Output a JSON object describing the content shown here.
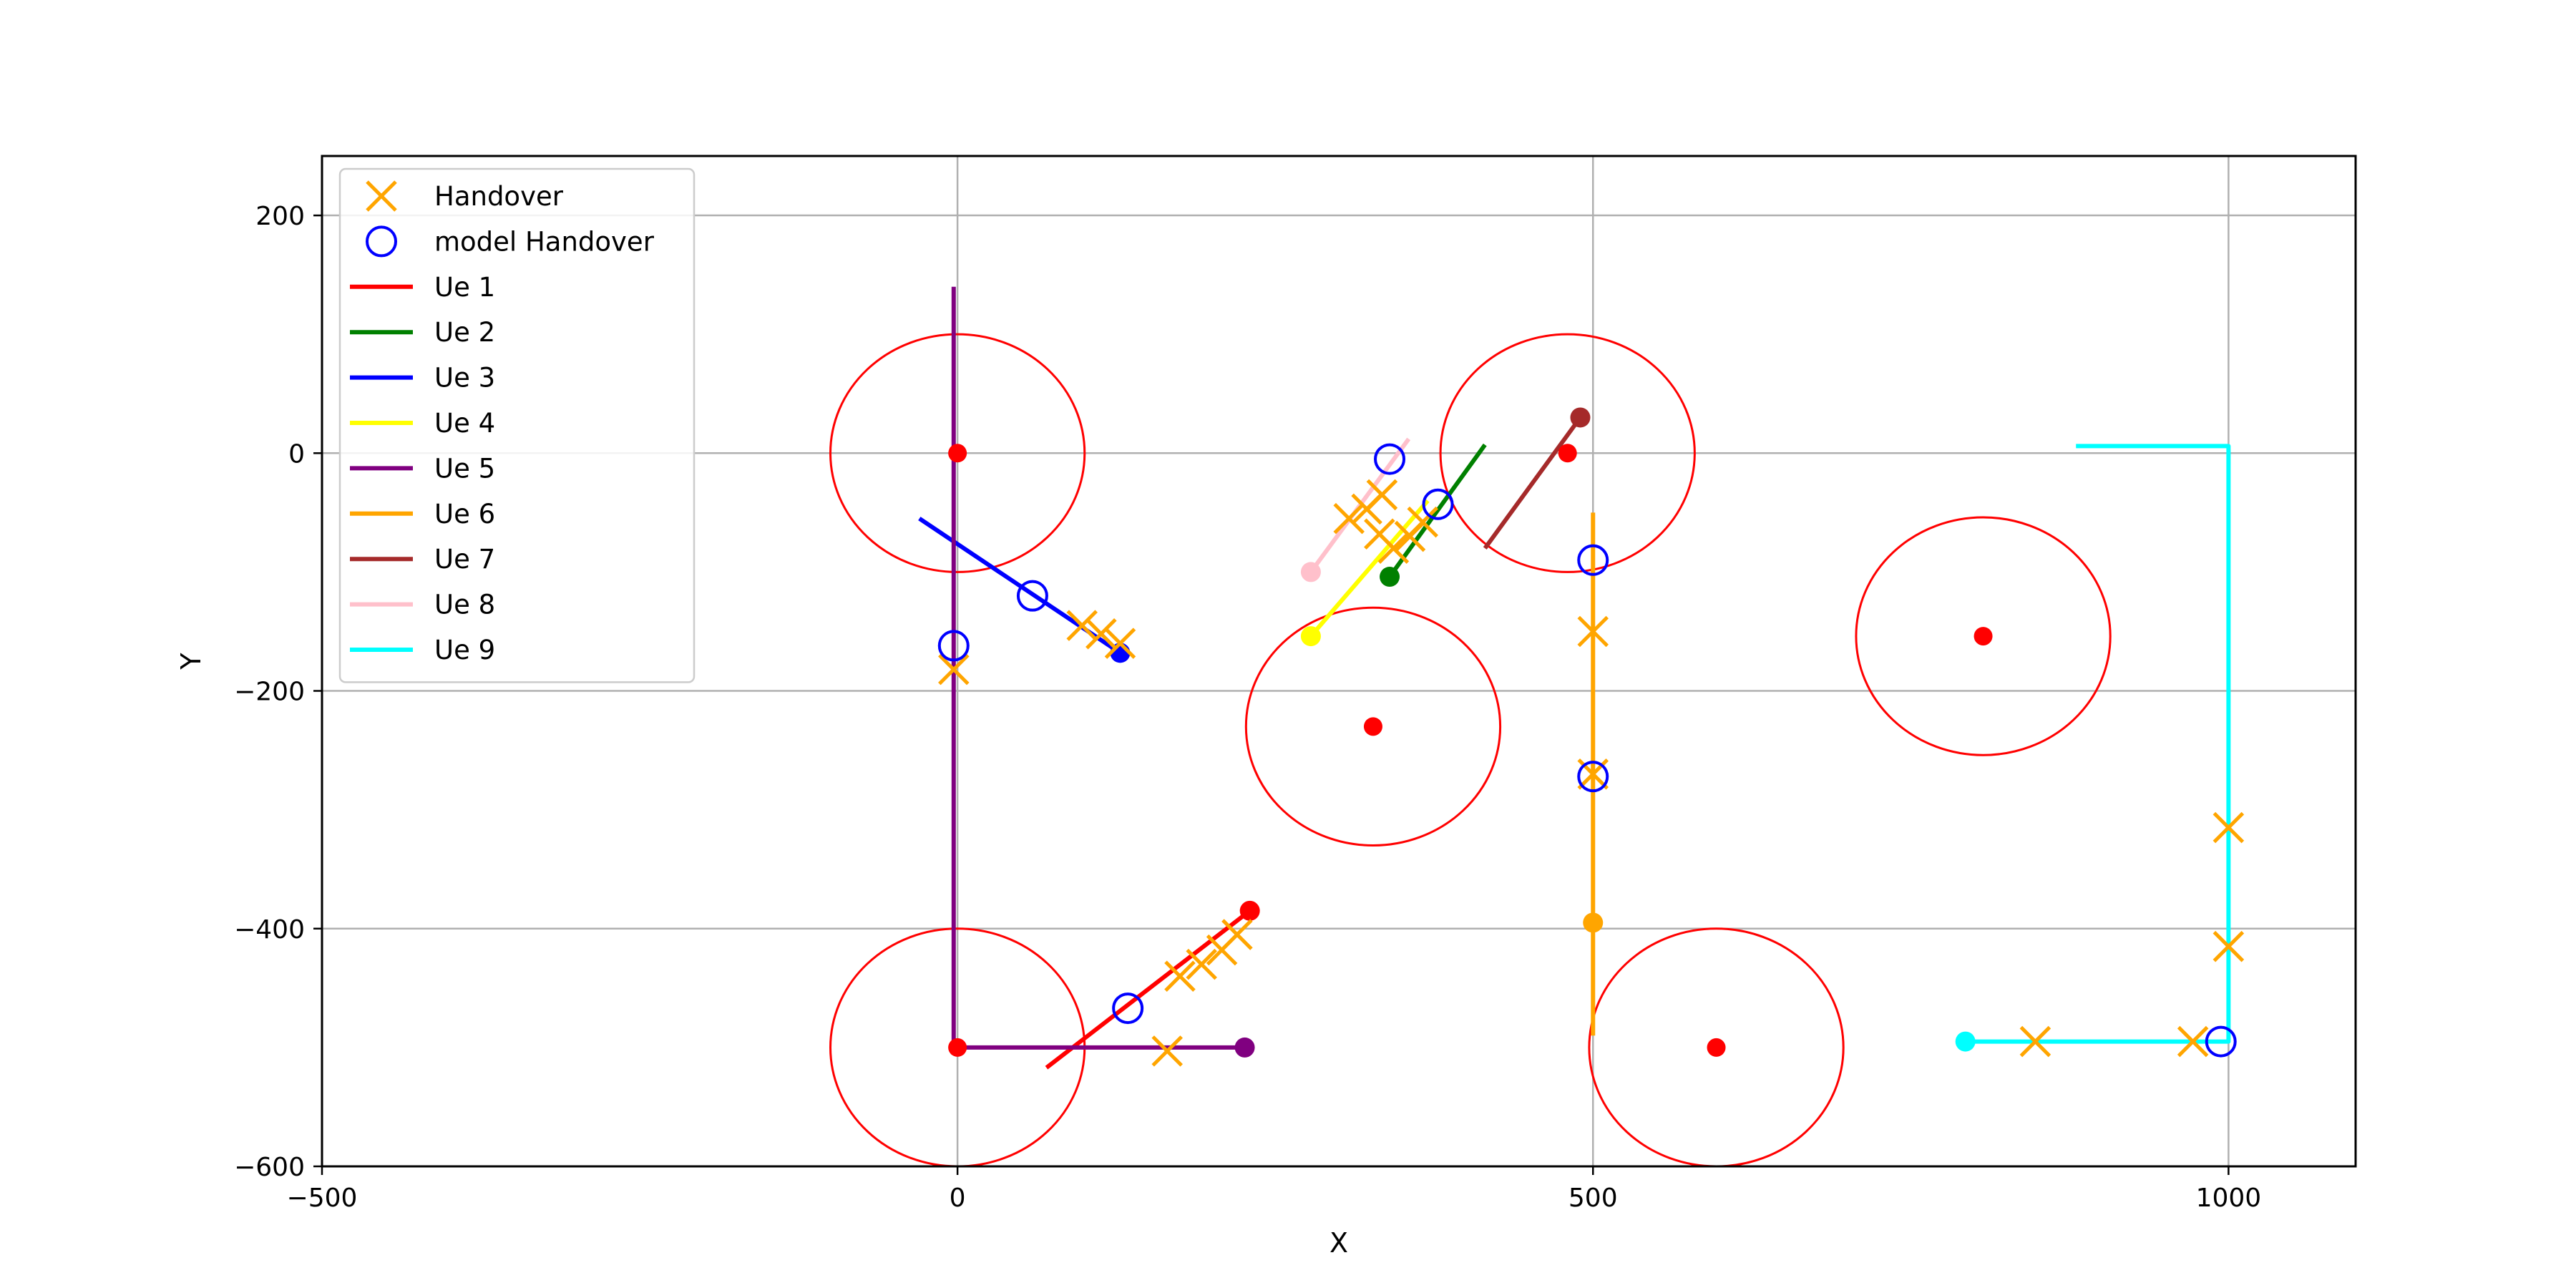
{
  "chart_data": {
    "type": "scatter",
    "title": "",
    "xlabel": "X",
    "ylabel": "Y",
    "xlim": [
      -500,
      1100
    ],
    "ylim": [
      -600,
      250
    ],
    "xticks": [
      -500,
      0,
      500,
      1000
    ],
    "yticks": [
      -600,
      -400,
      -200,
      0,
      200
    ],
    "grid": true,
    "legend_placement": "top-left",
    "colors": {
      "handover": "#ffa500",
      "model_handover": "#0000ff",
      "station": "#ff0000",
      "coverage": "#ff0000",
      "grid": "#b0b0b0"
    },
    "stations": [
      {
        "x": 0,
        "y": 0
      },
      {
        "x": 0,
        "y": -500
      },
      {
        "x": 327,
        "y": -230
      },
      {
        "x": 480,
        "y": 0
      },
      {
        "x": 597,
        "y": -500
      },
      {
        "x": 807,
        "y": -154
      }
    ],
    "coverage_radius": 100,
    "series": [
      {
        "name": "Ue 1",
        "color": "#ff0000",
        "x": [
          70,
          230
        ],
        "y": [
          -517,
          -385
        ],
        "start": [
          230,
          -385
        ]
      },
      {
        "name": "Ue 2",
        "color": "#008000",
        "x": [
          340,
          415
        ],
        "y": [
          -104,
          7
        ],
        "start": [
          340,
          -104
        ]
      },
      {
        "name": "Ue 3",
        "color": "#0000ff",
        "x": [
          -30,
          128
        ],
        "y": [
          -55,
          -168
        ],
        "start": [
          128,
          -168
        ]
      },
      {
        "name": "Ue 4",
        "color": "#ffff00",
        "x": [
          278,
          370
        ],
        "y": [
          -154,
          -40
        ],
        "start": [
          278,
          -154
        ]
      },
      {
        "name": "Ue 5",
        "color": "#800080",
        "x": [
          -3,
          -3,
          0,
          226
        ],
        "y": [
          140,
          -495,
          -500,
          -500
        ],
        "start": [
          226,
          -500
        ]
      },
      {
        "name": "Ue 6",
        "color": "#ffa500",
        "x": [
          500,
          500,
          500
        ],
        "y": [
          -50,
          -395,
          -490
        ],
        "start": [
          500,
          -395
        ]
      },
      {
        "name": "Ue 7",
        "color": "#a52a2a",
        "x": [
          415,
          490
        ],
        "y": [
          -80,
          30
        ],
        "start": [
          490,
          30
        ]
      },
      {
        "name": "Ue 8",
        "color": "#ffc0cb",
        "x": [
          278,
          355
        ],
        "y": [
          -100,
          12
        ],
        "start": [
          278,
          -100
        ]
      },
      {
        "name": "Ue 9",
        "color": "#00ffff",
        "x": [
          880,
          1000,
          1000,
          793
        ],
        "y": [
          6,
          6,
          -495,
          -495
        ],
        "start": [
          793,
          -495
        ]
      }
    ],
    "handover": {
      "name": "Handover",
      "x": [
        -3,
        98,
        113,
        128,
        165,
        175,
        192,
        208,
        220,
        308,
        322,
        334,
        332,
        343,
        356,
        366,
        500,
        500,
        848,
        972,
        1000,
        1000
      ],
      "y": [
        -182,
        -145,
        -152,
        -160,
        -503,
        -440,
        -430,
        -418,
        -405,
        -55,
        -47,
        -35,
        -68,
        -80,
        -70,
        -58,
        -150,
        -270,
        -495,
        -495,
        -315,
        -415
      ]
    },
    "model_handover": {
      "name": "model Handover",
      "x": [
        -3,
        59,
        134,
        340,
        378,
        500,
        500,
        994
      ],
      "y": [
        -162,
        -120,
        -467,
        -5,
        -43,
        -90,
        -272,
        -495
      ]
    }
  }
}
